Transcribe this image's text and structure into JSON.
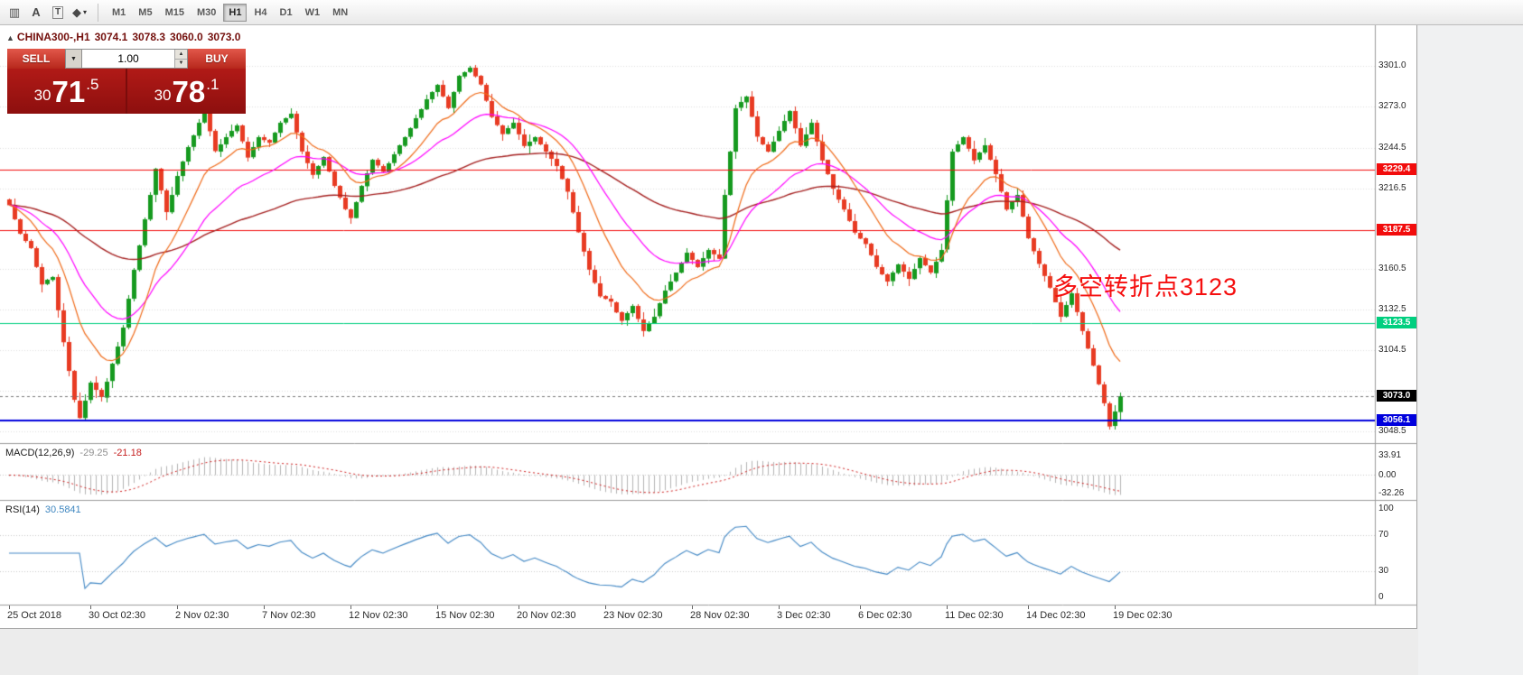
{
  "toolbar": {
    "tools": [
      {
        "name": "grid-pattern",
        "glyph": "▥"
      },
      {
        "name": "text-label-a",
        "glyph": "A"
      },
      {
        "name": "text-box-t",
        "glyph": "T",
        "boxed": true
      },
      {
        "name": "draw-shapes",
        "glyph": "◆",
        "dropdown": true
      }
    ],
    "timeframes": [
      "M1",
      "M5",
      "M15",
      "M30",
      "H1",
      "H4",
      "D1",
      "W1",
      "MN"
    ],
    "active_timeframe": "H1"
  },
  "icons": {
    "caret_down": "▼",
    "spin_up": "▲",
    "spin_down": "▼"
  },
  "chart_header": {
    "marker": "▲",
    "symbol": "CHINA300-,H1",
    "open": "3074.1",
    "high": "3078.3",
    "low": "3060.0",
    "close": "3073.0"
  },
  "trade_panel": {
    "sell_label": "SELL",
    "buy_label": "BUY",
    "volume": "1.00",
    "bid": "3071.5",
    "ask": "3078.1"
  },
  "annotation": {
    "text": "多空转折点3123",
    "color": "#f50f0f"
  },
  "price_axis_ticks": [
    "3301.0",
    "3273.0",
    "3244.5",
    "3216.5",
    "3160.5",
    "3132.5",
    "3104.5",
    "3048.5"
  ],
  "hline_tags": [
    {
      "label": "3229.4",
      "price": 3229.4,
      "color": "#f20c0c",
      "thickness": 1
    },
    {
      "label": "3187.5",
      "price": 3187.5,
      "color": "#f20c0c",
      "thickness": 1
    },
    {
      "label": "3123.5",
      "price": 3123.5,
      "color": "#00cf7f",
      "thickness": 1
    },
    {
      "label": "3056.1",
      "price": 3056.1,
      "color": "#0000dd",
      "thickness": 2
    }
  ],
  "current_price_tag": {
    "label": "3073.0",
    "price": 3073.0,
    "color": "#000000"
  },
  "macd_panel": {
    "title": "MACD(12,26,9)",
    "value_main": "-29.25",
    "value_signal": "-21.18",
    "axis": [
      {
        "label": "33.91",
        "value": 33.91
      },
      {
        "label": "0.00",
        "value": 0
      },
      {
        "label": "-32.26",
        "value": -32.26
      }
    ]
  },
  "rsi_panel": {
    "title": "RSI(14)",
    "value": "30.5841",
    "axis": [
      {
        "label": "100",
        "value": 100
      },
      {
        "label": "70",
        "value": 70
      },
      {
        "label": "30",
        "value": 30
      },
      {
        "label": "0",
        "value": 0
      }
    ],
    "levels": [
      70,
      30
    ]
  },
  "time_axis": [
    {
      "label": "25 Oct 2018",
      "bar": 0
    },
    {
      "label": "30 Oct 02:30",
      "bar": 15
    },
    {
      "label": "2 Nov 02:30",
      "bar": 31
    },
    {
      "label": "7 Nov 02:30",
      "bar": 47
    },
    {
      "label": "12 Nov 02:30",
      "bar": 63
    },
    {
      "label": "15 Nov 02:30",
      "bar": 79
    },
    {
      "label": "20 Nov 02:30",
      "bar": 94
    },
    {
      "label": "23 Nov 02:30",
      "bar": 110
    },
    {
      "label": "28 Nov 02:30",
      "bar": 126
    },
    {
      "label": "3 Dec 02:30",
      "bar": 142
    },
    {
      "label": "6 Dec 02:30",
      "bar": 157
    },
    {
      "label": "11 Dec 02:30",
      "bar": 173
    },
    {
      "label": "14 Dec 02:30",
      "bar": 188
    },
    {
      "label": "19 Dec 02:30",
      "bar": 204
    }
  ],
  "chart_data": {
    "type": "candlestick",
    "symbol": "CHINA300-",
    "timeframe": "H1",
    "ylim": [
      3041,
      3328
    ],
    "grid_prices": [
      3301.0,
      3273.0,
      3244.5,
      3216.5,
      3187.5,
      3160.5,
      3132.5,
      3104.5,
      3076.5,
      3048.5
    ],
    "up_color": "#169a1f",
    "down_color": "#e83b23",
    "closes": [
      3205,
      3195,
      3185,
      3180,
      3175,
      3162,
      3150,
      3153,
      3155,
      3132,
      3110,
      3090,
      3070,
      3058,
      3070,
      3082,
      3077,
      3072,
      3083,
      3095,
      3107,
      3120,
      3140,
      3160,
      3177,
      3195,
      3212,
      3230,
      3215,
      3200,
      3212,
      3225,
      3235,
      3245,
      3253,
      3262,
      3270,
      3256,
      3242,
      3247,
      3252,
      3256,
      3260,
      3249,
      3238,
      3245,
      3252,
      3250,
      3248,
      3255,
      3262,
      3265,
      3268,
      3255,
      3242,
      3234,
      3226,
      3232,
      3238,
      3228,
      3218,
      3210,
      3202,
      3196,
      3207,
      3218,
      3227,
      3236,
      3232,
      3228,
      3234,
      3240,
      3246,
      3252,
      3258,
      3265,
      3271,
      3278,
      3283,
      3288,
      3280,
      3272,
      3283,
      3294,
      3297,
      3300,
      3294,
      3288,
      3277,
      3266,
      3260,
      3254,
      3258,
      3262,
      3254,
      3246,
      3249,
      3252,
      3247,
      3242,
      3237,
      3232,
      3223,
      3214,
      3200,
      3186,
      3173,
      3160,
      3151,
      3142,
      3140,
      3138,
      3131,
      3125,
      3130,
      3135,
      3126,
      3118,
      3123,
      3128,
      3137,
      3146,
      3152,
      3158,
      3165,
      3172,
      3167,
      3162,
      3168,
      3174,
      3171,
      3168,
      3212,
      3242,
      3272,
      3276,
      3280,
      3266,
      3252,
      3247,
      3242,
      3249,
      3256,
      3263,
      3270,
      3258,
      3246,
      3254,
      3262,
      3249,
      3236,
      3226,
      3216,
      3209,
      3202,
      3194,
      3186,
      3182,
      3178,
      3170,
      3162,
      3157,
      3152,
      3158,
      3164,
      3159,
      3154,
      3161,
      3168,
      3163,
      3158,
      3166,
      3174,
      3208,
      3242,
      3247,
      3252,
      3244,
      3236,
      3241,
      3246,
      3236,
      3226,
      3214,
      3202,
      3207,
      3212,
      3197,
      3182,
      3173,
      3164,
      3156,
      3148,
      3138,
      3128,
      3136,
      3144,
      3131,
      3118,
      3106,
      3094,
      3081,
      3068,
      3052,
      3062,
      3073
    ],
    "overlays": {
      "ema_fast": {
        "period": 12,
        "color": "#f06a18"
      },
      "ema_mid": {
        "period": 26,
        "color": "#ff00ff"
      },
      "ema_slow": {
        "period": 80,
        "color": "#a52020"
      }
    },
    "hlines": [
      3229.4,
      3187.5,
      3123.5,
      3056.1
    ],
    "current_price": 3073.0,
    "indicators": [
      {
        "name": "MACD",
        "params": [
          12,
          26,
          9
        ],
        "values": [
          -29.25,
          -21.18
        ],
        "hist_color": "#b4b4b4",
        "signal_color": "#d02020"
      },
      {
        "name": "RSI",
        "params": [
          14
        ],
        "value": 30.5841,
        "levels": [
          30,
          70
        ],
        "color": "#4288c5"
      }
    ]
  }
}
